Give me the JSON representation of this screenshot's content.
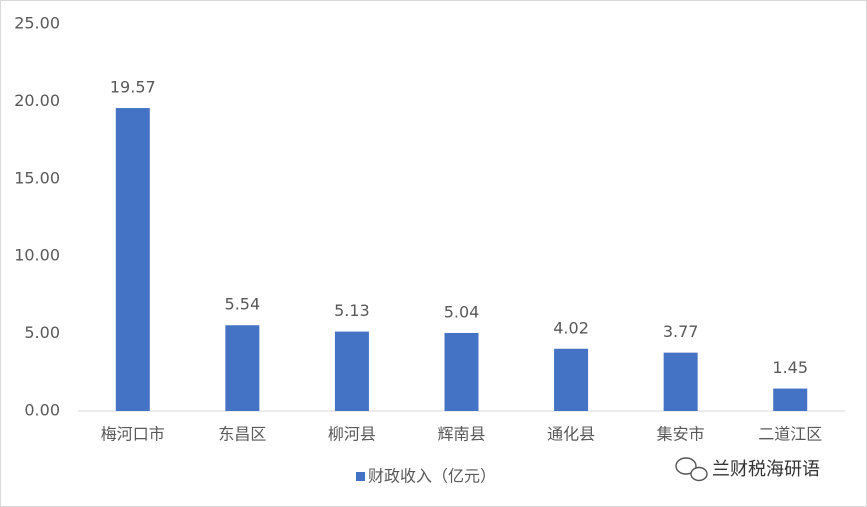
{
  "chart_data": {
    "type": "bar",
    "categories": [
      "梅河口市",
      "东昌区",
      "柳河县",
      "辉南县",
      "通化县",
      "集安市",
      "二道江区"
    ],
    "series": [
      {
        "name": "财政收入（亿元）",
        "color": "#4472c4",
        "values": [
          19.57,
          5.54,
          5.13,
          5.04,
          4.02,
          3.77,
          1.45
        ]
      }
    ],
    "ylim": [
      0,
      25
    ],
    "yticks": [
      {
        "value": 0,
        "label": "0.00"
      },
      {
        "value": 5,
        "label": "5.00"
      },
      {
        "value": 10,
        "label": "10.00"
      },
      {
        "value": 15,
        "label": "15.00"
      },
      {
        "value": 20,
        "label": "20.00"
      },
      {
        "value": 25,
        "label": "25.00"
      }
    ],
    "grid": false,
    "legend": "bottom",
    "watermark": "兰财税海研语"
  }
}
